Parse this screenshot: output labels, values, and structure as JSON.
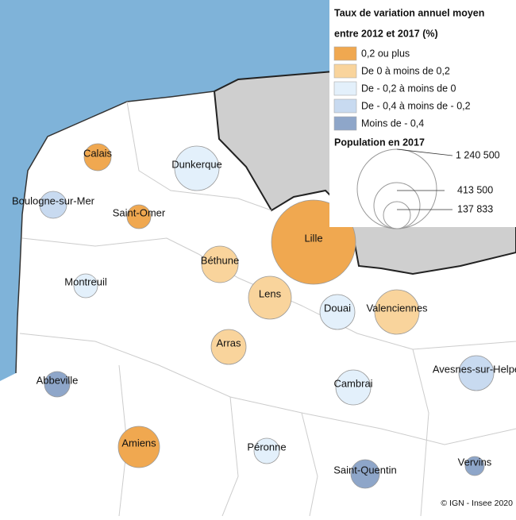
{
  "legend": {
    "title_lines": [
      "Taux de variation annuel moyen",
      "entre 2012 et 2017 (%)"
    ],
    "items": [
      {
        "label": "0,2 ou plus",
        "color": "#f0a850"
      },
      {
        "label": "De 0 à moins de 0,2",
        "color": "#f9d49c"
      },
      {
        "label": "De - 0,2 à moins de 0",
        "color": "#e3f0fb"
      },
      {
        "label": "De - 0,4 à moins de - 0,2",
        "color": "#c8daf0"
      },
      {
        "label": "Moins de - 0,4",
        "color": "#8ea6c9"
      }
    ]
  },
  "population_legend": {
    "title": "Population en 2017",
    "labels": [
      "1 240 500",
      "413 500",
      "137 833"
    ]
  },
  "cities": [
    {
      "name": "Calais",
      "class": 0
    },
    {
      "name": "Dunkerque",
      "class": 2
    },
    {
      "name": "Boulogne-sur-Mer",
      "class": 3
    },
    {
      "name": "Saint-Omer",
      "class": 0
    },
    {
      "name": "Lille",
      "class": 0
    },
    {
      "name": "Béthune",
      "class": 1
    },
    {
      "name": "Montreuil",
      "class": 2
    },
    {
      "name": "Lens",
      "class": 1
    },
    {
      "name": "Douai",
      "class": 2
    },
    {
      "name": "Valenciennes",
      "class": 1
    },
    {
      "name": "Arras",
      "class": 1
    },
    {
      "name": "Abbeville",
      "class": 4
    },
    {
      "name": "Cambrai",
      "class": 2
    },
    {
      "name": "Avesnes-sur-Helpe",
      "class": 3
    },
    {
      "name": "Amiens",
      "class": 0
    },
    {
      "name": "Péronne",
      "class": 2
    },
    {
      "name": "Saint-Quentin",
      "class": 4
    },
    {
      "name": "Vervins",
      "class": 4
    }
  ],
  "credit": "© IGN - Insee 2020"
}
